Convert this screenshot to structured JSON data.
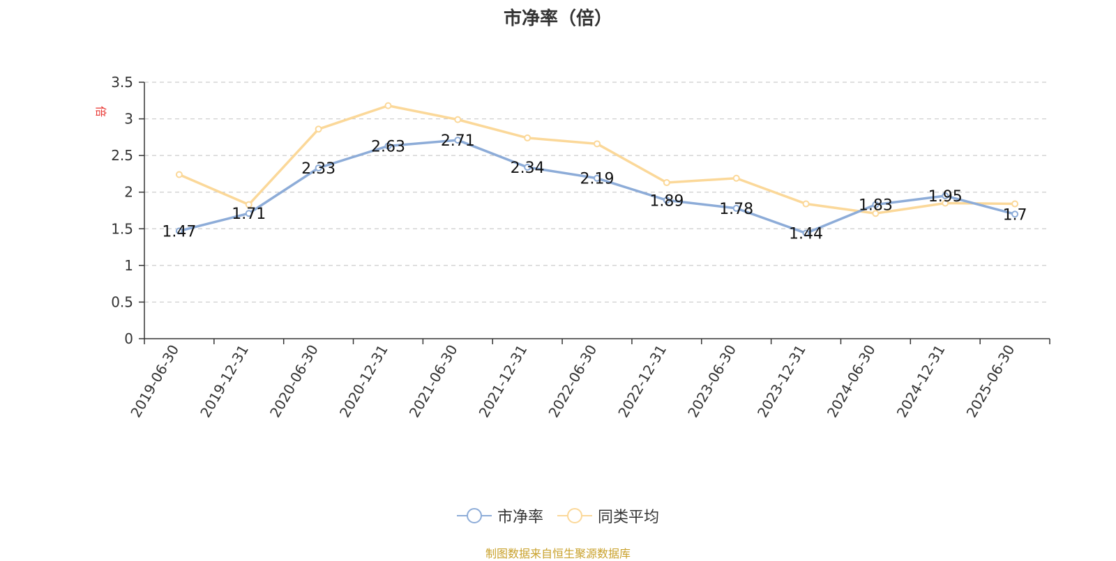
{
  "title": "市净率（倍）",
  "unit": "倍",
  "source": "制图数据来自恒生聚源数据库",
  "colors": {
    "series1": "#8dacd8",
    "series2": "#fbd899",
    "unit": "#e8322e",
    "source": "#c9a12b"
  },
  "chart_data": {
    "type": "line",
    "title": "市净率（倍）",
    "ylabel": "倍",
    "ylim": [
      0,
      3.5
    ],
    "yticks": [
      0,
      0.5,
      1,
      1.5,
      2,
      2.5,
      3,
      3.5
    ],
    "ytick_labels": [
      "0",
      "0.5",
      "1",
      "1.5",
      "2",
      "2.5",
      "3",
      "3.5"
    ],
    "grid": true,
    "legend_position": "bottom-center",
    "categories": [
      "2019-06-30",
      "2019-12-31",
      "2020-06-30",
      "2020-12-31",
      "2021-06-30",
      "2021-12-31",
      "2022-06-30",
      "2022-12-31",
      "2023-06-30",
      "2023-12-31",
      "2024-06-30",
      "2024-12-31",
      "2025-06-30"
    ],
    "series": [
      {
        "name": "市净率",
        "values": [
          1.47,
          1.71,
          2.33,
          2.63,
          2.71,
          2.34,
          2.19,
          1.89,
          1.78,
          1.44,
          1.83,
          1.95,
          1.7
        ],
        "labels": [
          "1.47",
          "1.71",
          "2.33",
          "2.63",
          "2.71",
          "2.34",
          "2.19",
          "1.89",
          "1.78",
          "1.44",
          "1.83",
          "1.95",
          "1.7"
        ]
      },
      {
        "name": "同类平均",
        "values": [
          2.24,
          1.83,
          2.86,
          3.18,
          2.99,
          2.74,
          2.66,
          2.13,
          2.19,
          1.84,
          1.71,
          1.85,
          1.84
        ]
      }
    ]
  }
}
